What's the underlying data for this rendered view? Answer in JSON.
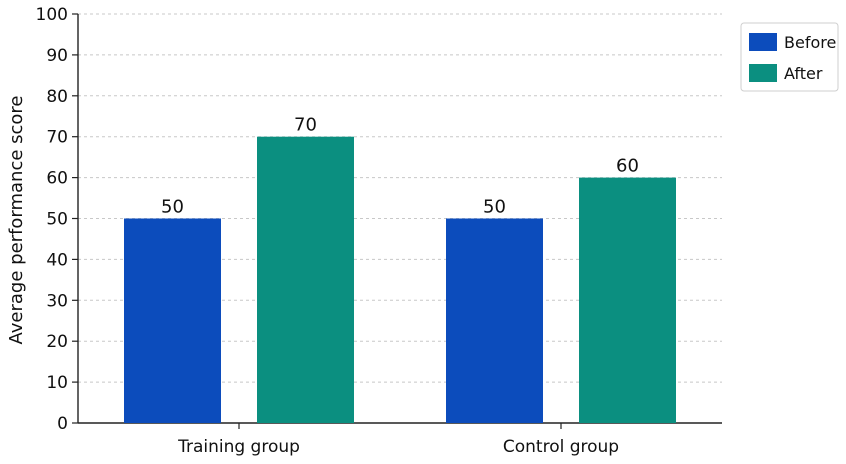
{
  "chart_data": {
    "type": "bar",
    "categories": [
      "Training group",
      "Control group"
    ],
    "series": [
      {
        "name": "Before",
        "values": [
          50,
          50
        ],
        "color": "#0c4cbc"
      },
      {
        "name": "After",
        "values": [
          70,
          60
        ],
        "color": "#0b8f80"
      }
    ],
    "title": "",
    "xlabel": "",
    "ylabel": "Average performance score",
    "ylim": [
      0,
      100
    ],
    "yticks": [
      0,
      10,
      20,
      30,
      40,
      50,
      60,
      70,
      80,
      90,
      100
    ],
    "grid": true,
    "legend": "top-right"
  }
}
